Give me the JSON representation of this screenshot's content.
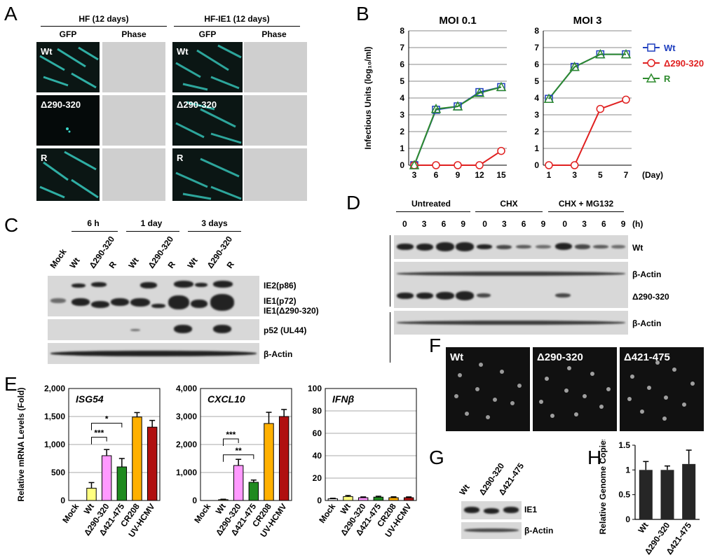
{
  "panels": {
    "A": "A",
    "B": "B",
    "C": "C",
    "D": "D",
    "E": "E",
    "F": "F",
    "G": "G",
    "H": "H"
  },
  "panelA": {
    "group1": "HF (12 days)",
    "group2": "HF-IE1 (12 days)",
    "col_gfp": "GFP",
    "col_phase": "Phase",
    "rows": [
      "Wt",
      "Δ290-320",
      "R"
    ]
  },
  "panelB": {
    "ylabel": "Infectious Units (log₁₀/ml)",
    "day_label": "(Day)",
    "legend": [
      "Wt",
      "Δ290-320",
      "R"
    ],
    "colors": {
      "wt": "#1f3fbf",
      "d290": "#e02020",
      "r": "#2e8b2e"
    }
  },
  "panelC": {
    "timepoints": [
      "6 h",
      "1 day",
      "3 days"
    ],
    "lanes": [
      "Mock",
      "Wt",
      "Δ290-320",
      "R",
      "Wt",
      "Δ290-320",
      "R",
      "Wt",
      "Δ290-320",
      "R"
    ],
    "bands": [
      "IE2(p86)",
      "IE1(p72)",
      "IE1(Δ290-320)",
      "p52 (UL44)",
      "β-Actin"
    ]
  },
  "panelD": {
    "groups": [
      "Untreated",
      "CHX",
      "CHX + MG132"
    ],
    "hours": [
      "0",
      "3",
      "6",
      "9",
      "0",
      "3",
      "6",
      "9",
      "0",
      "3",
      "6",
      "9"
    ],
    "unit": "(h)",
    "bands": [
      "Wt",
      "β-Actin",
      "Δ290-320",
      "β-Actin"
    ]
  },
  "panelE": {
    "ylabel": "Relative mRNA Levels (Fold)",
    "categories": [
      "Mock",
      "Wt",
      "Δ290-320",
      "Δ421-475",
      "CR208",
      "UV-HCMV"
    ],
    "sig": {
      "s1": "***",
      "s2": "*",
      "s3": "**",
      "s4": "***"
    }
  },
  "panelF": {
    "labels": [
      "Wt",
      "Δ290-320",
      "Δ421-475"
    ]
  },
  "panelG": {
    "lanes": [
      "Wt",
      "Δ290-320",
      "Δ421-475"
    ],
    "bands": [
      "IE1",
      "β-Actin"
    ]
  },
  "panelH": {
    "ylabel": "Relative Genome Copies"
  },
  "chart_data": [
    {
      "type": "line",
      "title": "MOI 0.1",
      "x": [
        3,
        6,
        9,
        12,
        15
      ],
      "xlabel": "",
      "ylabel": "Infectious Units (log₁₀/ml)",
      "ylim": [
        0,
        8
      ],
      "series": [
        {
          "name": "Wt",
          "values": [
            0,
            3.3,
            3.5,
            4.35,
            4.65
          ]
        },
        {
          "name": "Δ290-320",
          "values": [
            0,
            0,
            0,
            0,
            0.85
          ]
        },
        {
          "name": "R",
          "values": [
            0,
            3.35,
            3.5,
            4.3,
            4.65
          ]
        }
      ]
    },
    {
      "type": "line",
      "title": "MOI 3",
      "x": [
        1,
        3,
        5,
        7
      ],
      "xlabel": "(Day)",
      "ylim": [
        0,
        8
      ],
      "series": [
        {
          "name": "Wt",
          "values": [
            3.95,
            5.85,
            6.6,
            6.6
          ]
        },
        {
          "name": "Δ290-320",
          "values": [
            0,
            0,
            3.35,
            3.9
          ]
        },
        {
          "name": "R",
          "values": [
            3.95,
            5.85,
            6.6,
            6.6
          ]
        }
      ]
    },
    {
      "type": "bar",
      "title": "ISG54",
      "categories": [
        "Mock",
        "Wt",
        "Δ290-320",
        "Δ421-475",
        "CR208",
        "UV-HCMV"
      ],
      "values": [
        0,
        220,
        800,
        600,
        1490,
        1310
      ],
      "errors": [
        0,
        100,
        110,
        150,
        80,
        120
      ],
      "ylim": [
        0,
        2000
      ],
      "yticks": [
        "0",
        "500",
        "1,000",
        "1,500",
        "2,000"
      ],
      "colors": [
        "#ffffff",
        "#ffff80",
        "#ff99ff",
        "#1f8a1f",
        "#ffb000",
        "#b01010"
      ]
    },
    {
      "type": "bar",
      "title": "CXCL10",
      "categories": [
        "Mock",
        "Wt",
        "Δ290-320",
        "Δ421-475",
        "CR208",
        "UV-HCMV"
      ],
      "values": [
        0,
        30,
        1250,
        650,
        2750,
        3000
      ],
      "errors": [
        0,
        15,
        220,
        80,
        400,
        250
      ],
      "ylim": [
        0,
        4000
      ],
      "yticks": [
        "0",
        "1,000",
        "2,000",
        "3,000",
        "4,000"
      ],
      "colors": [
        "#ffffff",
        "#ffff80",
        "#ff99ff",
        "#1f8a1f",
        "#ffb000",
        "#b01010"
      ]
    },
    {
      "type": "bar",
      "title": "IFNβ",
      "categories": [
        "Mock",
        "Wt",
        "Δ290-320",
        "Δ421-475",
        "CR208",
        "UV-HCMV"
      ],
      "values": [
        1.5,
        3.5,
        2.5,
        3,
        2.5,
        2.5
      ],
      "errors": [
        0.5,
        1,
        0.7,
        0.8,
        0.8,
        0.7
      ],
      "ylim": [
        0,
        100
      ],
      "yticks": [
        "0",
        "20",
        "40",
        "60",
        "80",
        "100"
      ],
      "colors": [
        "#ffffff",
        "#ffff80",
        "#ff99ff",
        "#1f8a1f",
        "#ffb000",
        "#b01010"
      ]
    },
    {
      "type": "bar",
      "title": "",
      "categories": [
        "Wt",
        "Δ290-320",
        "Δ421-475"
      ],
      "values": [
        1.0,
        1.0,
        1.12
      ],
      "errors": [
        0.17,
        0.08,
        0.28
      ],
      "ylim": [
        0,
        1.5
      ],
      "yticks": [
        "0",
        "0.5",
        "1",
        "1.5"
      ],
      "colors": [
        "#262626",
        "#262626",
        "#262626"
      ]
    }
  ]
}
